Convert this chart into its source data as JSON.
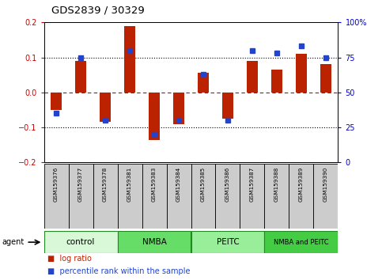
{
  "title": "GDS2839 / 30329",
  "samples": [
    "GSM159376",
    "GSM159377",
    "GSM159378",
    "GSM159381",
    "GSM159383",
    "GSM159384",
    "GSM159385",
    "GSM159386",
    "GSM159387",
    "GSM159388",
    "GSM159389",
    "GSM159390"
  ],
  "log_ratio": [
    -0.05,
    0.09,
    -0.085,
    0.19,
    -0.135,
    -0.09,
    0.055,
    -0.075,
    0.09,
    0.065,
    0.11,
    0.08
  ],
  "percentile": [
    35,
    75,
    30,
    80,
    20,
    30,
    63,
    30,
    80,
    78,
    83,
    75
  ],
  "ylim_left": [
    -0.2,
    0.2
  ],
  "ylim_right": [
    0,
    100
  ],
  "yticks_left": [
    -0.2,
    -0.1,
    0,
    0.1,
    0.2
  ],
  "yticks_right": [
    0,
    25,
    50,
    75,
    100
  ],
  "groups": [
    {
      "label": "control",
      "start": 0,
      "end": 3,
      "color": "#d8f8d8"
    },
    {
      "label": "NMBA",
      "start": 3,
      "end": 6,
      "color": "#66dd66"
    },
    {
      "label": "PEITC",
      "start": 6,
      "end": 9,
      "color": "#99ee99"
    },
    {
      "label": "NMBA and PEITC",
      "start": 9,
      "end": 12,
      "color": "#44cc44"
    }
  ],
  "bar_color_red": "#bb2200",
  "bar_color_blue": "#2244cc",
  "plot_bg": "#ffffff",
  "red_axis_color": "#cc0000",
  "blue_axis_color": "#0000cc",
  "sample_box_color": "#cccccc",
  "group_border_color": "#228822"
}
